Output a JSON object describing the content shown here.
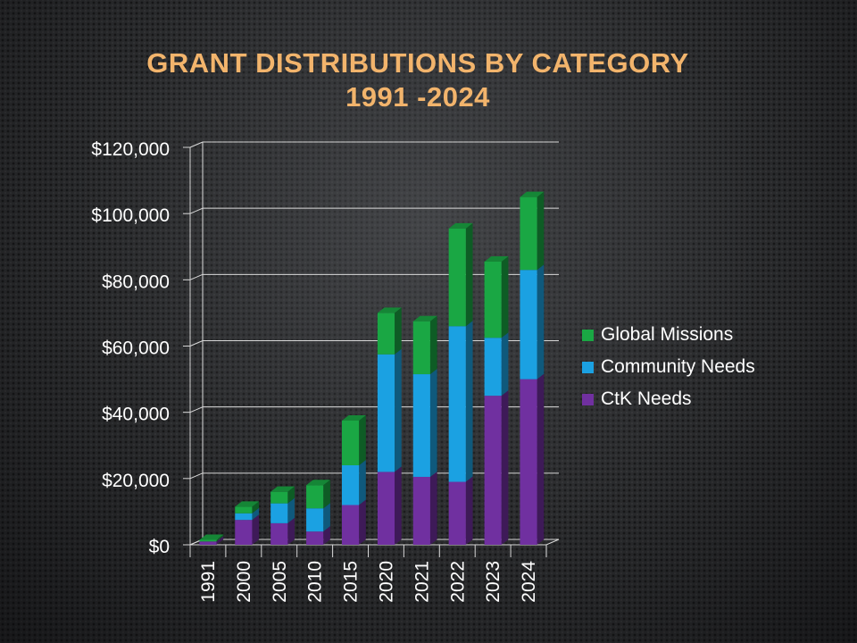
{
  "chart_data": {
    "type": "bar",
    "stacked": true,
    "three_d": true,
    "title": "GRANT DISTRIBUTIONS BY CATEGORY",
    "subtitle": "1991 -2024",
    "categories": [
      "1991",
      "2000",
      "2005",
      "2010",
      "2015",
      "2020",
      "2021",
      "2022",
      "2023",
      "2024"
    ],
    "series": [
      {
        "name": "CtK Needs",
        "color": "#7030a0",
        "values": [
          1000,
          7500,
          6500,
          4000,
          12000,
          22000,
          20500,
          19000,
          45000,
          50000
        ]
      },
      {
        "name": "Community Needs",
        "color": "#1ba1e2",
        "values": [
          0,
          2000,
          6000,
          7000,
          12000,
          35500,
          31000,
          47000,
          17500,
          33000
        ]
      },
      {
        "name": "Global Missions",
        "color": "#1aa744",
        "values": [
          500,
          2000,
          3500,
          7000,
          13500,
          12500,
          16000,
          29500,
          23000,
          22000
        ]
      }
    ],
    "ylim": [
      0,
      120000
    ],
    "yticks": [
      0,
      20000,
      40000,
      60000,
      80000,
      100000,
      120000
    ],
    "ytick_labels": [
      "$0",
      "$20,000",
      "$40,000",
      "$60,000",
      "$80,000",
      "$100,000",
      "$120,000"
    ],
    "grid": true,
    "legend_position": "right",
    "legend_order": [
      "Global Missions",
      "Community Needs",
      "CtK Needs"
    ]
  }
}
